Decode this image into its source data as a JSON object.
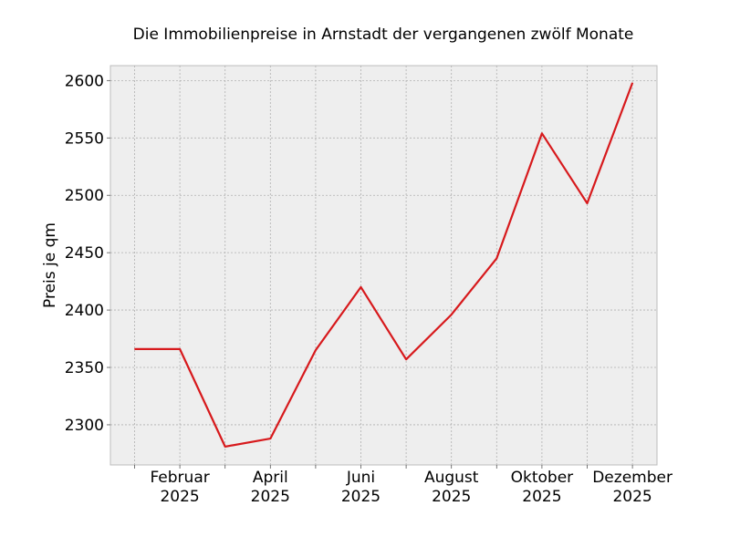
{
  "chart_data": {
    "type": "line",
    "title": "Die Immobilienpreise in Arnstadt der vergangenen zwölf Monate",
    "xlabel": "",
    "ylabel": "Preis je qm",
    "x": [
      "2025-01",
      "2025-02",
      "2025-03",
      "2025-04",
      "2025-05",
      "2025-06",
      "2025-07",
      "2025-08",
      "2025-09",
      "2025-10",
      "2025-11",
      "2025-12"
    ],
    "series": [
      {
        "values": [
          2366,
          2366,
          2281,
          2288,
          2365,
          2420,
          2357,
          2396,
          2445,
          2554,
          2493,
          2598
        ],
        "color": "#d7191c"
      }
    ],
    "ylim": [
      2265,
      2613
    ],
    "yticks": [
      2300,
      2350,
      2400,
      2450,
      2500,
      2550,
      2600
    ],
    "xticks": [
      {
        "x": "2025-02",
        "month": "Februar",
        "year": "2025"
      },
      {
        "x": "2025-04",
        "month": "April",
        "year": "2025"
      },
      {
        "x": "2025-06",
        "month": "Juni",
        "year": "2025"
      },
      {
        "x": "2025-08",
        "month": "August",
        "year": "2025"
      },
      {
        "x": "2025-10",
        "month": "Oktober",
        "year": "2025"
      },
      {
        "x": "2025-12",
        "month": "Dezember",
        "year": "2025"
      }
    ],
    "grid": true,
    "colors": {
      "background": "#eeeeee",
      "grid": "#b0b0b0",
      "line": "#d7191c"
    }
  }
}
